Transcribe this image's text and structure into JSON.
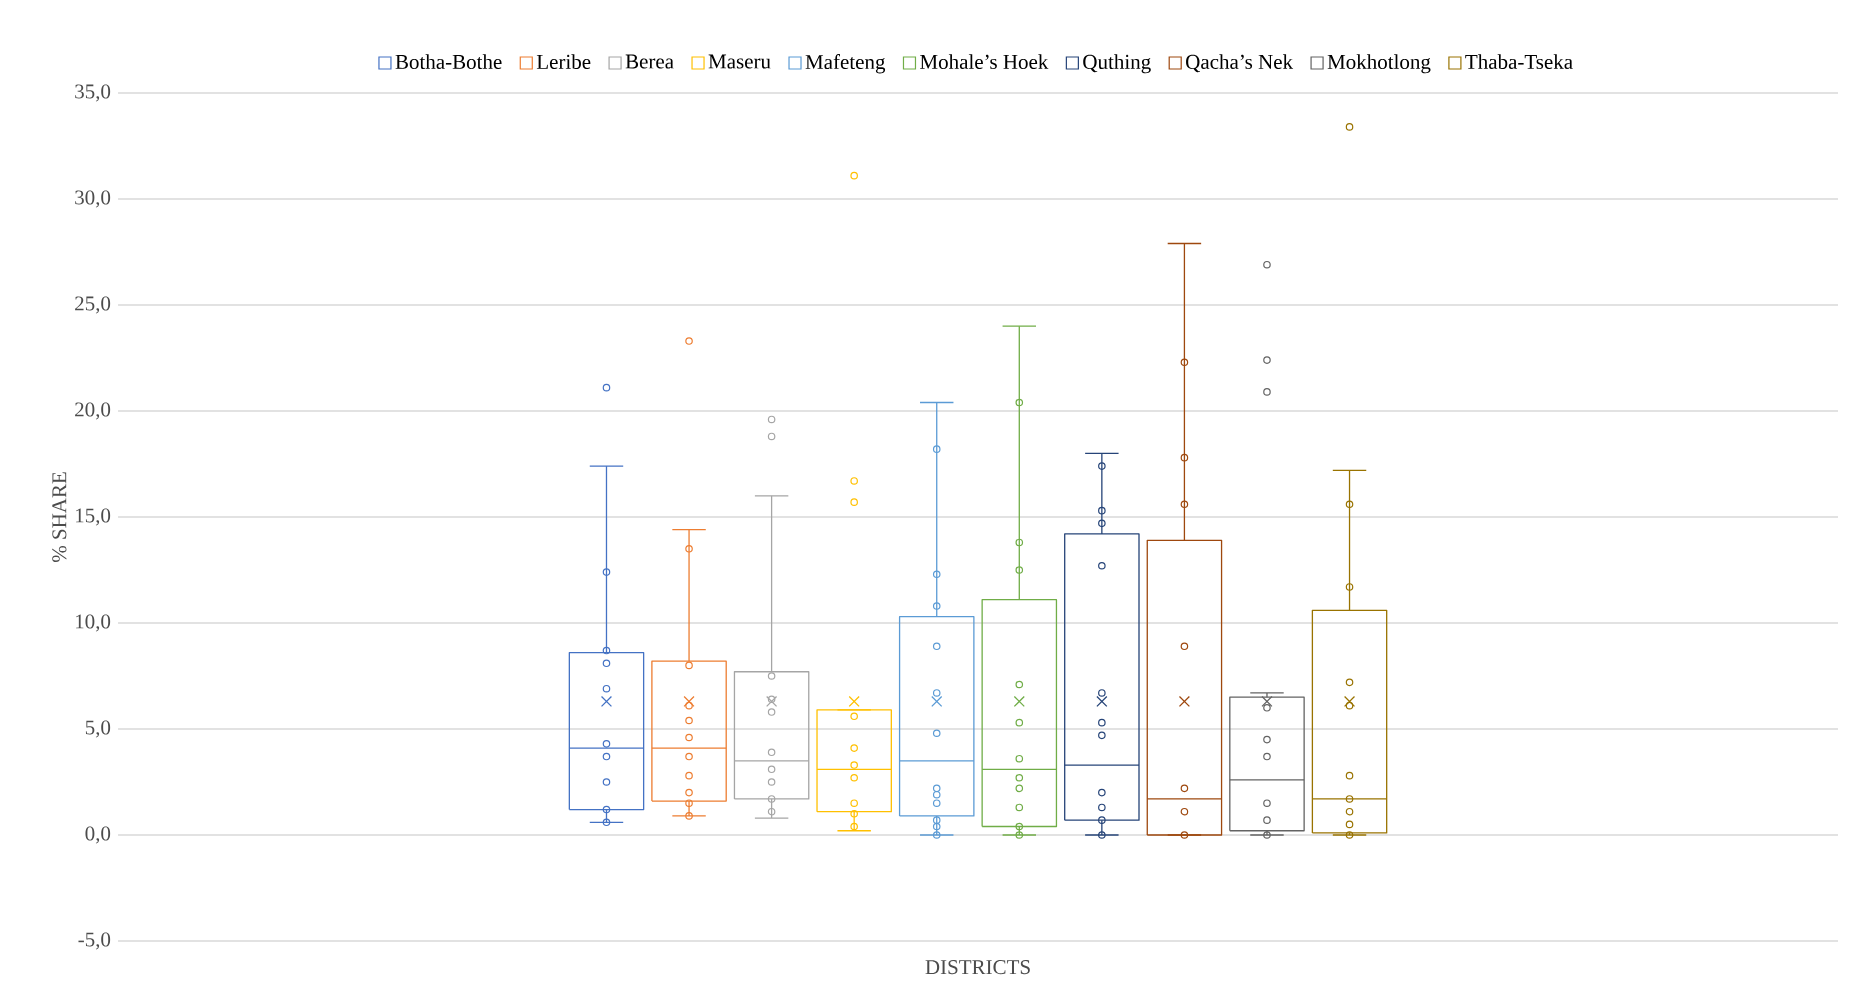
{
  "chart_data": {
    "type": "box",
    "xlabel": "DISTRICTS",
    "ylabel": "% SHARE",
    "categories": [
      null
    ],
    "ylim": [
      -5,
      35
    ],
    "yticks": [
      {
        "value": -5,
        "label": "-5,0"
      },
      {
        "value": 0,
        "label": "0,0"
      },
      {
        "value": 5,
        "label": "5,0"
      },
      {
        "value": 10,
        "label": "10,0"
      },
      {
        "value": 15,
        "label": "15,0"
      },
      {
        "value": 20,
        "label": "20,0"
      },
      {
        "value": 25,
        "label": "25,0"
      },
      {
        "value": 30,
        "label": "30,0"
      },
      {
        "value": 35,
        "label": "35,0"
      }
    ],
    "grid": "y",
    "legend": "top",
    "marker": "circle",
    "series": [
      {
        "name": "Botha-Bothe",
        "color": "#4472c4",
        "boxes": [
          {
            "low": 0.6,
            "q1": 1.2,
            "median": 4.1,
            "q3": 8.6,
            "high": 17.4,
            "mean": 6.3,
            "outliers": [
              21.1,
              12.4,
              8.7,
              8.1,
              6.9,
              4.3,
              3.7,
              2.5,
              1.2,
              0.6
            ]
          }
        ]
      },
      {
        "name": "Leribe",
        "color": "#ed7d31",
        "boxes": [
          {
            "low": 0.9,
            "q1": 1.6,
            "median": 4.1,
            "q3": 8.2,
            "high": 14.4,
            "mean": 6.3,
            "outliers": [
              23.3,
              13.5,
              8.0,
              6.1,
              5.4,
              4.6,
              3.7,
              2.8,
              2.0,
              1.5,
              0.9
            ]
          }
        ]
      },
      {
        "name": "Berea",
        "color": "#a5a5a5",
        "boxes": [
          {
            "low": 0.8,
            "q1": 1.7,
            "median": 3.5,
            "q3": 7.7,
            "high": 16.0,
            "mean": 6.3,
            "outliers": [
              19.6,
              18.8,
              7.5,
              6.4,
              5.8,
              3.9,
              3.1,
              2.5,
              1.7,
              1.1
            ]
          }
        ]
      },
      {
        "name": "Maseru",
        "color": "#ffc000",
        "boxes": [
          {
            "low": 0.2,
            "q1": 1.1,
            "median": 3.1,
            "q3": 5.9,
            "high": 5.9,
            "mean": 6.3,
            "outliers": [
              31.1,
              16.7,
              15.7,
              5.6,
              4.1,
              3.3,
              2.7,
              1.5,
              1.0,
              0.4
            ]
          }
        ]
      },
      {
        "name": "Mafeteng",
        "color": "#5b9bd5",
        "boxes": [
          {
            "low": 0.0,
            "q1": 0.9,
            "median": 3.5,
            "q3": 10.3,
            "high": 20.4,
            "mean": 6.3,
            "outliers": [
              18.2,
              12.3,
              10.8,
              8.9,
              6.7,
              4.8,
              2.2,
              1.9,
              1.5,
              0.7,
              0.4,
              0.0
            ]
          }
        ]
      },
      {
        "name": "Mohale’s Hoek",
        "color": "#70ad47",
        "boxes": [
          {
            "low": 0.0,
            "q1": 0.4,
            "median": 3.1,
            "q3": 11.1,
            "high": 24.0,
            "mean": 6.3,
            "outliers": [
              20.4,
              13.8,
              12.5,
              7.1,
              5.3,
              3.6,
              2.7,
              2.2,
              1.3,
              0.4,
              0.0
            ]
          }
        ]
      },
      {
        "name": "Quthing",
        "color": "#264478",
        "boxes": [
          {
            "low": 0.0,
            "q1": 0.7,
            "median": 3.3,
            "q3": 14.2,
            "high": 18.0,
            "mean": 6.3,
            "outliers": [
              17.4,
              15.3,
              14.7,
              12.7,
              6.7,
              5.3,
              4.7,
              2.0,
              1.3,
              0.7,
              0.0
            ]
          }
        ]
      },
      {
        "name": "Qacha’s Nek",
        "color": "#9e480e",
        "boxes": [
          {
            "low": 0.0,
            "q1": 0.0,
            "median": 1.7,
            "q3": 13.9,
            "high": 27.9,
            "mean": 6.3,
            "outliers": [
              22.3,
              17.8,
              15.6,
              8.9,
              2.2,
              1.1,
              0.0
            ]
          }
        ]
      },
      {
        "name": "Mokhotlong",
        "color": "#636363",
        "boxes": [
          {
            "low": 0.0,
            "q1": 0.2,
            "median": 2.6,
            "q3": 6.5,
            "high": 6.7,
            "mean": 6.3,
            "outliers": [
              26.9,
              22.4,
              20.9,
              6.0,
              4.5,
              3.7,
              1.5,
              0.7,
              0.0
            ]
          }
        ]
      },
      {
        "name": "Thaba-Tseka",
        "color": "#997300",
        "boxes": [
          {
            "low": 0.0,
            "q1": 0.1,
            "median": 1.7,
            "q3": 10.6,
            "high": 17.2,
            "mean": 6.3,
            "outliers": [
              33.4,
              15.6,
              11.7,
              7.2,
              6.1,
              2.8,
              1.7,
              1.1,
              0.5,
              0.0
            ]
          }
        ]
      }
    ]
  }
}
